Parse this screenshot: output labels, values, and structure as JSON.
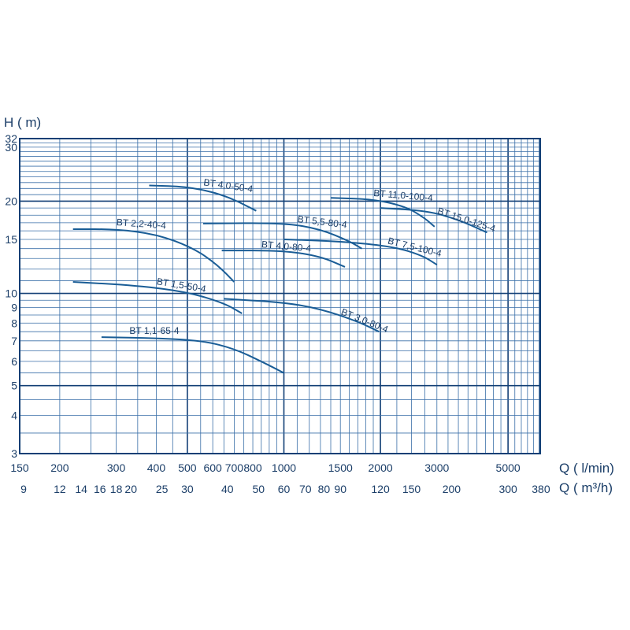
{
  "chart_data": {
    "type": "line",
    "title": "",
    "ylabel": "H ( m)",
    "xlabel": "Q ( l/min)",
    "xlabel2": "Q ( m³/h)",
    "x_scale": "log",
    "y_scale": "log",
    "xlim": [
      150,
      6300
    ],
    "ylim": [
      3,
      32
    ],
    "grid": true,
    "y_ticks": [
      "3",
      "4",
      "5",
      "6",
      "7",
      "8",
      "9",
      "10",
      "15",
      "20",
      "30",
      "32"
    ],
    "x_ticks": [
      "150",
      "200",
      "300",
      "400",
      "500",
      "600",
      "700",
      "800",
      "1000",
      "1500",
      "2000",
      "3000",
      "5000"
    ],
    "x2_ticks": [
      "9",
      "12",
      "14",
      "16",
      "18",
      "20",
      "25",
      "30",
      "40",
      "50",
      "60",
      "70",
      "80",
      "90",
      "120",
      "150",
      "200",
      "300",
      "380"
    ],
    "series": [
      {
        "name": "BT 4,0-50-4",
        "points": [
          [
            380,
            22.5
          ],
          [
            500,
            22.3
          ],
          [
            650,
            21.0
          ],
          [
            820,
            18.6
          ]
        ]
      },
      {
        "name": "BT 2,2-40-4",
        "points": [
          [
            220,
            16.2
          ],
          [
            300,
            16.2
          ],
          [
            400,
            15.6
          ],
          [
            520,
            14.1
          ],
          [
            620,
            12.4
          ],
          [
            700,
            10.9
          ]
        ]
      },
      {
        "name": "BT 11,0-100-4",
        "points": [
          [
            1400,
            20.5
          ],
          [
            1900,
            20.3
          ],
          [
            2400,
            19.2
          ],
          [
            2750,
            17.6
          ],
          [
            2950,
            16.5
          ]
        ]
      },
      {
        "name": "BT 15,0-125-4",
        "points": [
          [
            2000,
            19.0
          ],
          [
            2800,
            18.6
          ],
          [
            3500,
            17.4
          ],
          [
            4300,
            15.8
          ]
        ]
      },
      {
        "name": "BT 5,5-80-4",
        "points": [
          [
            560,
            16.9
          ],
          [
            1000,
            17.0
          ],
          [
            1300,
            16.2
          ],
          [
            1600,
            14.8
          ],
          [
            1750,
            14.0
          ]
        ]
      },
      {
        "name": "BT 7,5-100-4",
        "points": [
          [
            1000,
            15.0
          ],
          [
            1500,
            14.8
          ],
          [
            2200,
            14.2
          ],
          [
            2700,
            13.3
          ],
          [
            3000,
            12.4
          ]
        ]
      },
      {
        "name": "BT 4,0-80-4",
        "points": [
          [
            640,
            13.8
          ],
          [
            1000,
            13.8
          ],
          [
            1300,
            13.2
          ],
          [
            1550,
            12.2
          ]
        ]
      },
      {
        "name": "BT 1,5-50-4",
        "points": [
          [
            220,
            10.9
          ],
          [
            350,
            10.6
          ],
          [
            500,
            10.1
          ],
          [
            650,
            9.3
          ],
          [
            740,
            8.6
          ]
        ]
      },
      {
        "name": "BT 3,0-80-4",
        "points": [
          [
            650,
            9.6
          ],
          [
            1000,
            9.35
          ],
          [
            1300,
            8.9
          ],
          [
            1700,
            8.1
          ],
          [
            1980,
            7.5
          ]
        ]
      },
      {
        "name": "BT 1,1-65-4",
        "points": [
          [
            270,
            7.2
          ],
          [
            400,
            7.15
          ],
          [
            560,
            7.0
          ],
          [
            700,
            6.6
          ],
          [
            850,
            6.0
          ],
          [
            1000,
            5.5
          ]
        ]
      }
    ]
  }
}
